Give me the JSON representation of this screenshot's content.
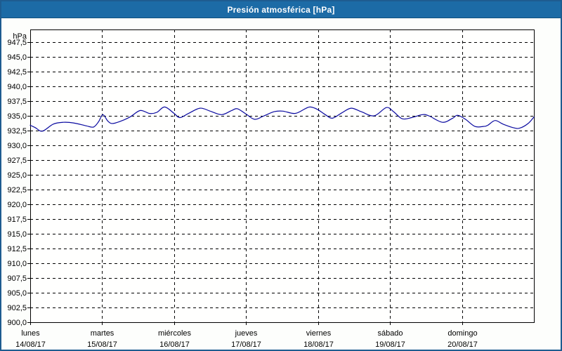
{
  "title": "Presión atmosférica [hPa]",
  "colors": {
    "title_bar_bg": "#1c6ba6",
    "title_text": "#ffffff",
    "outer_border": "#1e5c90",
    "plot_bg": "#fffffe",
    "grid": "#000000",
    "frame": "#000000",
    "line": "#0a0aa0"
  },
  "chart_data": {
    "type": "line",
    "title": "Presión atmosférica [hPa]",
    "y_unit_label": "hPa",
    "ylabel": "",
    "xlabel": "",
    "ylim": [
      900.0,
      950.0
    ],
    "y_tick_step": 2.5,
    "decimal_separator": ",",
    "grid": "dashed",
    "legend": "none",
    "y_ticks": [
      {
        "v": 947.5,
        "label": "947,5"
      },
      {
        "v": 945.0,
        "label": "945,0"
      },
      {
        "v": 942.5,
        "label": "942,5"
      },
      {
        "v": 940.0,
        "label": "940,0"
      },
      {
        "v": 937.5,
        "label": "937,5"
      },
      {
        "v": 935.0,
        "label": "935,0"
      },
      {
        "v": 932.5,
        "label": "932,5"
      },
      {
        "v": 930.0,
        "label": "930,0"
      },
      {
        "v": 927.5,
        "label": "927,5"
      },
      {
        "v": 925.0,
        "label": "925,0"
      },
      {
        "v": 922.5,
        "label": "922,5"
      },
      {
        "v": 920.0,
        "label": "920,0"
      },
      {
        "v": 917.5,
        "label": "917,5"
      },
      {
        "v": 915.0,
        "label": "915,0"
      },
      {
        "v": 912.5,
        "label": "912,5"
      },
      {
        "v": 910.0,
        "label": "910,0"
      },
      {
        "v": 907.5,
        "label": "907,5"
      },
      {
        "v": 905.0,
        "label": "905,0"
      },
      {
        "v": 902.5,
        "label": "902,5"
      },
      {
        "v": 900.0,
        "label": "900,0"
      }
    ],
    "x_days": [
      {
        "name": "lunes",
        "date": "14/08/17"
      },
      {
        "name": "martes",
        "date": "15/08/17"
      },
      {
        "name": "miércoles",
        "date": "16/08/17"
      },
      {
        "name": "jueves",
        "date": "17/08/17"
      },
      {
        "name": "viernes",
        "date": "18/08/17"
      },
      {
        "name": "sábado",
        "date": "19/08/17"
      },
      {
        "name": "domingo",
        "date": "20/08/17"
      }
    ],
    "x_range_days": [
      0,
      7
    ],
    "series": [
      {
        "name": "Presión atmosférica",
        "color": "#0a0aa0",
        "points": [
          {
            "d": 0.0,
            "v": 933.4
          },
          {
            "d": 0.07,
            "v": 933.0
          },
          {
            "d": 0.17,
            "v": 932.4
          },
          {
            "d": 0.32,
            "v": 933.6
          },
          {
            "d": 0.46,
            "v": 933.9
          },
          {
            "d": 0.6,
            "v": 933.8
          },
          {
            "d": 0.78,
            "v": 933.3
          },
          {
            "d": 0.88,
            "v": 933.1
          },
          {
            "d": 0.95,
            "v": 934.0
          },
          {
            "d": 1.01,
            "v": 935.2
          },
          {
            "d": 1.08,
            "v": 934.1
          },
          {
            "d": 1.15,
            "v": 933.7
          },
          {
            "d": 1.3,
            "v": 934.3
          },
          {
            "d": 1.4,
            "v": 934.9
          },
          {
            "d": 1.53,
            "v": 935.9
          },
          {
            "d": 1.66,
            "v": 935.4
          },
          {
            "d": 1.76,
            "v": 935.6
          },
          {
            "d": 1.87,
            "v": 936.5
          },
          {
            "d": 2.0,
            "v": 935.4
          },
          {
            "d": 2.08,
            "v": 934.7
          },
          {
            "d": 2.2,
            "v": 935.4
          },
          {
            "d": 2.36,
            "v": 936.3
          },
          {
            "d": 2.5,
            "v": 935.8
          },
          {
            "d": 2.66,
            "v": 935.2
          },
          {
            "d": 2.8,
            "v": 935.9
          },
          {
            "d": 2.88,
            "v": 936.2
          },
          {
            "d": 3.0,
            "v": 935.3
          },
          {
            "d": 3.12,
            "v": 934.4
          },
          {
            "d": 3.25,
            "v": 935.0
          },
          {
            "d": 3.39,
            "v": 935.7
          },
          {
            "d": 3.51,
            "v": 935.8
          },
          {
            "d": 3.68,
            "v": 935.4
          },
          {
            "d": 3.82,
            "v": 936.2
          },
          {
            "d": 3.89,
            "v": 936.5
          },
          {
            "d": 3.99,
            "v": 936.1
          },
          {
            "d": 4.1,
            "v": 935.2
          },
          {
            "d": 4.2,
            "v": 934.6
          },
          {
            "d": 4.33,
            "v": 935.5
          },
          {
            "d": 4.46,
            "v": 936.3
          },
          {
            "d": 4.6,
            "v": 935.7
          },
          {
            "d": 4.78,
            "v": 935.0
          },
          {
            "d": 4.95,
            "v": 936.4
          },
          {
            "d": 5.05,
            "v": 935.7
          },
          {
            "d": 5.17,
            "v": 934.5
          },
          {
            "d": 5.3,
            "v": 934.7
          },
          {
            "d": 5.45,
            "v": 935.2
          },
          {
            "d": 5.54,
            "v": 935.0
          },
          {
            "d": 5.73,
            "v": 933.9
          },
          {
            "d": 5.87,
            "v": 934.6
          },
          {
            "d": 5.94,
            "v": 935.1
          },
          {
            "d": 6.05,
            "v": 934.4
          },
          {
            "d": 6.18,
            "v": 933.2
          },
          {
            "d": 6.3,
            "v": 933.2
          },
          {
            "d": 6.36,
            "v": 933.4
          },
          {
            "d": 6.46,
            "v": 934.2
          },
          {
            "d": 6.57,
            "v": 933.6
          },
          {
            "d": 6.71,
            "v": 933.0
          },
          {
            "d": 6.8,
            "v": 932.9
          },
          {
            "d": 6.92,
            "v": 933.7
          },
          {
            "d": 7.0,
            "v": 934.8
          }
        ]
      }
    ]
  }
}
